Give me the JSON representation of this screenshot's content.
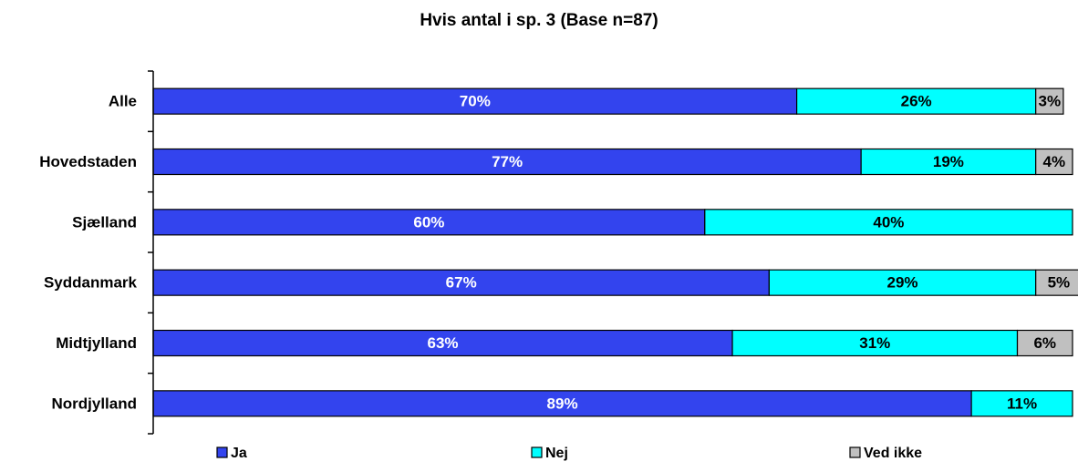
{
  "chart_data": {
    "type": "bar",
    "orientation": "horizontal",
    "stacked": true,
    "title": "Hvis antal i sp. 3 (Base n=87)",
    "categories": [
      "Alle",
      "Hovedstaden",
      "Sjælland",
      "Syddanmark",
      "Midtjylland",
      "Nordjylland"
    ],
    "xlim": [
      0,
      100
    ],
    "series": [
      {
        "name": "Ja",
        "color": "#3344ee",
        "label_color": "#ffffff",
        "values": [
          70,
          77,
          60,
          67,
          63,
          89
        ],
        "value_labels": [
          "70%",
          "77%",
          "60%",
          "67%",
          "63%",
          "89%"
        ]
      },
      {
        "name": "Nej",
        "color": "#00ffff",
        "label_color": "#000000",
        "values": [
          26,
          19,
          40,
          29,
          31,
          11
        ],
        "value_labels": [
          "26%",
          "19%",
          "40%",
          "29%",
          "31%",
          "11%"
        ]
      },
      {
        "name": "Ved ikke",
        "color": "#c0c0c0",
        "label_color": "#000000",
        "values": [
          3,
          4,
          null,
          5,
          6,
          null
        ],
        "value_labels": [
          "3%",
          "4%",
          null,
          "5%",
          "6%",
          null
        ]
      }
    ],
    "legend": "bottom"
  }
}
